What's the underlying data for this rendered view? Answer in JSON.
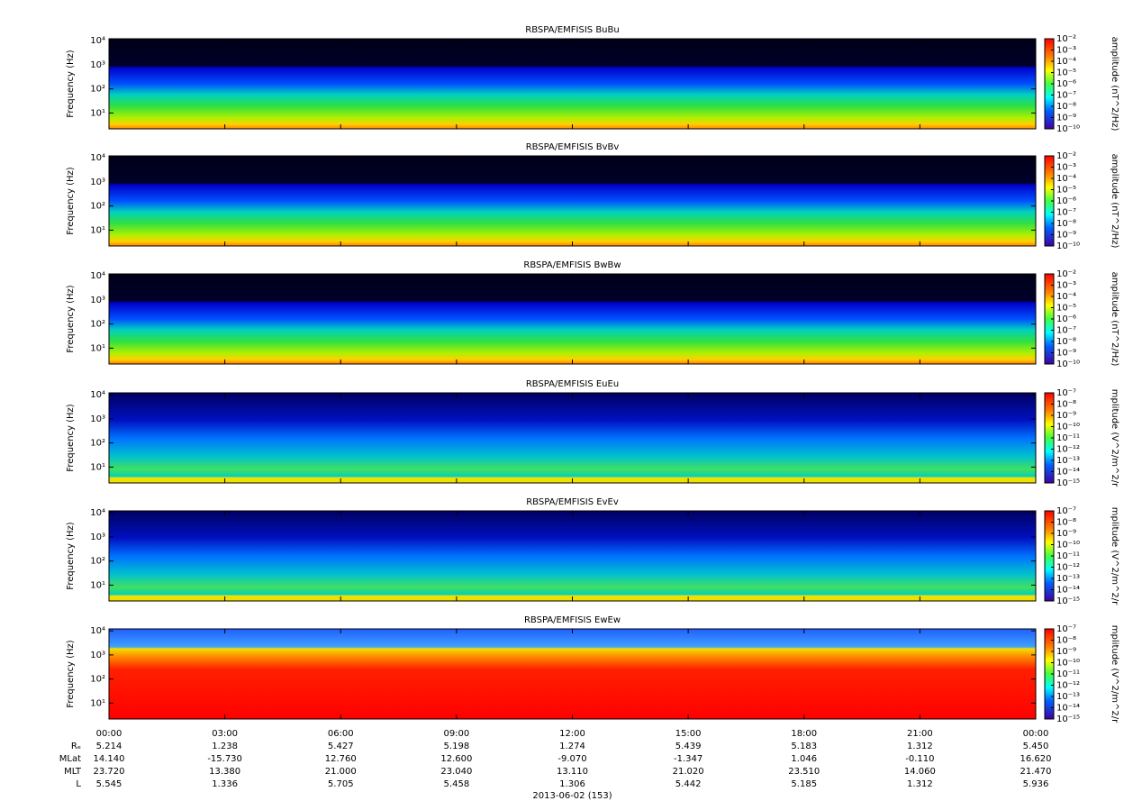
{
  "chart_data": [
    {
      "type": "spectrogram",
      "title": "RBSPA/EMFISIS  BuBu",
      "ylabel": "Frequency (Hz)",
      "log_y": true,
      "ylim": [
        2.2,
        12000
      ],
      "yticks": [
        {
          "value": 10,
          "label": "10¹"
        },
        {
          "value": 100,
          "label": "10²"
        },
        {
          "value": 1000,
          "label": "10³"
        },
        {
          "value": 10000,
          "label": "10⁴"
        }
      ],
      "colorbar_label": "amplitude (nT^2/Hz)",
      "clim": [
        1e-10,
        0.01
      ],
      "cticks": [
        {
          "value": 0.01,
          "label": "10⁻²"
        },
        {
          "value": 0.001,
          "label": "10⁻³"
        },
        {
          "value": 0.0001,
          "label": "10⁻⁴"
        },
        {
          "value": 1e-05,
          "label": "10⁻⁵"
        },
        {
          "value": 1e-06,
          "label": "10⁻⁶"
        },
        {
          "value": 1e-07,
          "label": "10⁻⁷"
        },
        {
          "value": 1e-08,
          "label": "10⁻⁸"
        },
        {
          "value": 1e-09,
          "label": "10⁻⁹"
        },
        {
          "value": 1e-10,
          "label": "10⁻¹⁰"
        }
      ]
    },
    {
      "type": "spectrogram",
      "title": "RBSPA/EMFISIS  BvBv",
      "ylabel": "Frequency (Hz)",
      "log_y": true,
      "ylim": [
        2.2,
        12000
      ],
      "yticks": [
        {
          "value": 10,
          "label": "10¹"
        },
        {
          "value": 100,
          "label": "10²"
        },
        {
          "value": 1000,
          "label": "10³"
        },
        {
          "value": 10000,
          "label": "10⁴"
        }
      ],
      "colorbar_label": "amplitude (nT^2/Hz)",
      "clim": [
        1e-10,
        0.01
      ],
      "cticks": [
        {
          "value": 0.01,
          "label": "10⁻²"
        },
        {
          "value": 0.001,
          "label": "10⁻³"
        },
        {
          "value": 0.0001,
          "label": "10⁻⁴"
        },
        {
          "value": 1e-05,
          "label": "10⁻⁵"
        },
        {
          "value": 1e-06,
          "label": "10⁻⁶"
        },
        {
          "value": 1e-07,
          "label": "10⁻⁷"
        },
        {
          "value": 1e-08,
          "label": "10⁻⁸"
        },
        {
          "value": 1e-09,
          "label": "10⁻⁹"
        },
        {
          "value": 1e-10,
          "label": "10⁻¹⁰"
        }
      ]
    },
    {
      "type": "spectrogram",
      "title": "RBSPA/EMFISIS  BwBw",
      "ylabel": "Frequency (Hz)",
      "log_y": true,
      "ylim": [
        2.2,
        12000
      ],
      "yticks": [
        {
          "value": 10,
          "label": "10¹"
        },
        {
          "value": 100,
          "label": "10²"
        },
        {
          "value": 1000,
          "label": "10³"
        },
        {
          "value": 10000,
          "label": "10⁴"
        }
      ],
      "colorbar_label": "amplitude (nT^2/Hz)",
      "clim": [
        1e-10,
        0.01
      ],
      "cticks": [
        {
          "value": 0.01,
          "label": "10⁻²"
        },
        {
          "value": 0.001,
          "label": "10⁻³"
        },
        {
          "value": 0.0001,
          "label": "10⁻⁴"
        },
        {
          "value": 1e-05,
          "label": "10⁻⁵"
        },
        {
          "value": 1e-06,
          "label": "10⁻⁶"
        },
        {
          "value": 1e-07,
          "label": "10⁻⁷"
        },
        {
          "value": 1e-08,
          "label": "10⁻⁸"
        },
        {
          "value": 1e-09,
          "label": "10⁻⁹"
        },
        {
          "value": 1e-10,
          "label": "10⁻¹⁰"
        }
      ]
    },
    {
      "type": "spectrogram",
      "title": "RBSPA/EMFISIS  EuEu",
      "ylabel": "Frequency (Hz)",
      "log_y": true,
      "ylim": [
        2.2,
        12000
      ],
      "yticks": [
        {
          "value": 10,
          "label": "10¹"
        },
        {
          "value": 100,
          "label": "10²"
        },
        {
          "value": 1000,
          "label": "10³"
        },
        {
          "value": 10000,
          "label": "10⁴"
        }
      ],
      "colorbar_label": "mplitude (V^2/m^2/r",
      "clim": [
        1e-15,
        1e-07
      ],
      "cticks": [
        {
          "value": 1e-07,
          "label": "10⁻⁷"
        },
        {
          "value": 1e-08,
          "label": "10⁻⁸"
        },
        {
          "value": 1e-09,
          "label": "10⁻⁹"
        },
        {
          "value": 1e-10,
          "label": "10⁻¹⁰"
        },
        {
          "value": 1e-11,
          "label": "10⁻¹¹"
        },
        {
          "value": 1e-12,
          "label": "10⁻¹²"
        },
        {
          "value": 1e-13,
          "label": "10⁻¹³"
        },
        {
          "value": 1e-14,
          "label": "10⁻¹⁴"
        },
        {
          "value": 1e-15,
          "label": "10⁻¹⁵"
        }
      ]
    },
    {
      "type": "spectrogram",
      "title": "RBSPA/EMFISIS  EvEv",
      "ylabel": "Frequency (Hz)",
      "log_y": true,
      "ylim": [
        2.2,
        12000
      ],
      "yticks": [
        {
          "value": 10,
          "label": "10¹"
        },
        {
          "value": 100,
          "label": "10²"
        },
        {
          "value": 1000,
          "label": "10³"
        },
        {
          "value": 10000,
          "label": "10⁴"
        }
      ],
      "colorbar_label": "mplitude (V^2/m^2/r",
      "clim": [
        1e-15,
        1e-07
      ],
      "cticks": [
        {
          "value": 1e-07,
          "label": "10⁻⁷"
        },
        {
          "value": 1e-08,
          "label": "10⁻⁸"
        },
        {
          "value": 1e-09,
          "label": "10⁻⁹"
        },
        {
          "value": 1e-10,
          "label": "10⁻¹⁰"
        },
        {
          "value": 1e-11,
          "label": "10⁻¹¹"
        },
        {
          "value": 1e-12,
          "label": "10⁻¹²"
        },
        {
          "value": 1e-13,
          "label": "10⁻¹³"
        },
        {
          "value": 1e-14,
          "label": "10⁻¹⁴"
        },
        {
          "value": 1e-15,
          "label": "10⁻¹⁵"
        }
      ]
    },
    {
      "type": "spectrogram",
      "title": "RBSPA/EMFISIS  EwEw",
      "ylabel": "Frequency (Hz)",
      "log_y": true,
      "ylim": [
        2.2,
        12000
      ],
      "yticks": [
        {
          "value": 10,
          "label": "10¹"
        },
        {
          "value": 100,
          "label": "10²"
        },
        {
          "value": 1000,
          "label": "10³"
        },
        {
          "value": 10000,
          "label": "10⁴"
        }
      ],
      "colorbar_label": "mplitude (V^2/m^2/r",
      "clim": [
        1e-15,
        1e-07
      ],
      "cticks": [
        {
          "value": 1e-07,
          "label": "10⁻⁷"
        },
        {
          "value": 1e-08,
          "label": "10⁻⁸"
        },
        {
          "value": 1e-09,
          "label": "10⁻⁹"
        },
        {
          "value": 1e-10,
          "label": "10⁻¹⁰"
        },
        {
          "value": 1e-11,
          "label": "10⁻¹¹"
        },
        {
          "value": 1e-12,
          "label": "10⁻¹²"
        },
        {
          "value": 1e-13,
          "label": "10⁻¹³"
        },
        {
          "value": 1e-14,
          "label": "10⁻¹⁴"
        },
        {
          "value": 1e-15,
          "label": "10⁻¹⁵"
        }
      ]
    }
  ],
  "x_axis": {
    "ticks": [
      "00:00",
      "03:00",
      "06:00",
      "09:00",
      "12:00",
      "15:00",
      "18:00",
      "21:00",
      "00:00"
    ],
    "rows": [
      {
        "label": "Rₑ",
        "values": [
          "5.214",
          "1.238",
          "5.427",
          "5.198",
          "1.274",
          "5.439",
          "5.183",
          "1.312",
          "5.450"
        ]
      },
      {
        "label": "MLat",
        "values": [
          "14.140",
          "-15.730",
          "12.760",
          "12.600",
          "-9.070",
          "-1.347",
          "1.046",
          "-0.110",
          "16.620"
        ]
      },
      {
        "label": "MLT",
        "values": [
          "23.720",
          "13.380",
          "21.000",
          "23.040",
          "13.110",
          "21.020",
          "23.510",
          "14.060",
          "21.470"
        ]
      },
      {
        "label": "L",
        "values": [
          "5.545",
          "1.336",
          "5.705",
          "5.458",
          "1.306",
          "5.442",
          "5.185",
          "1.312",
          "5.936"
        ]
      }
    ],
    "date": "2013-06-02 (153)"
  }
}
